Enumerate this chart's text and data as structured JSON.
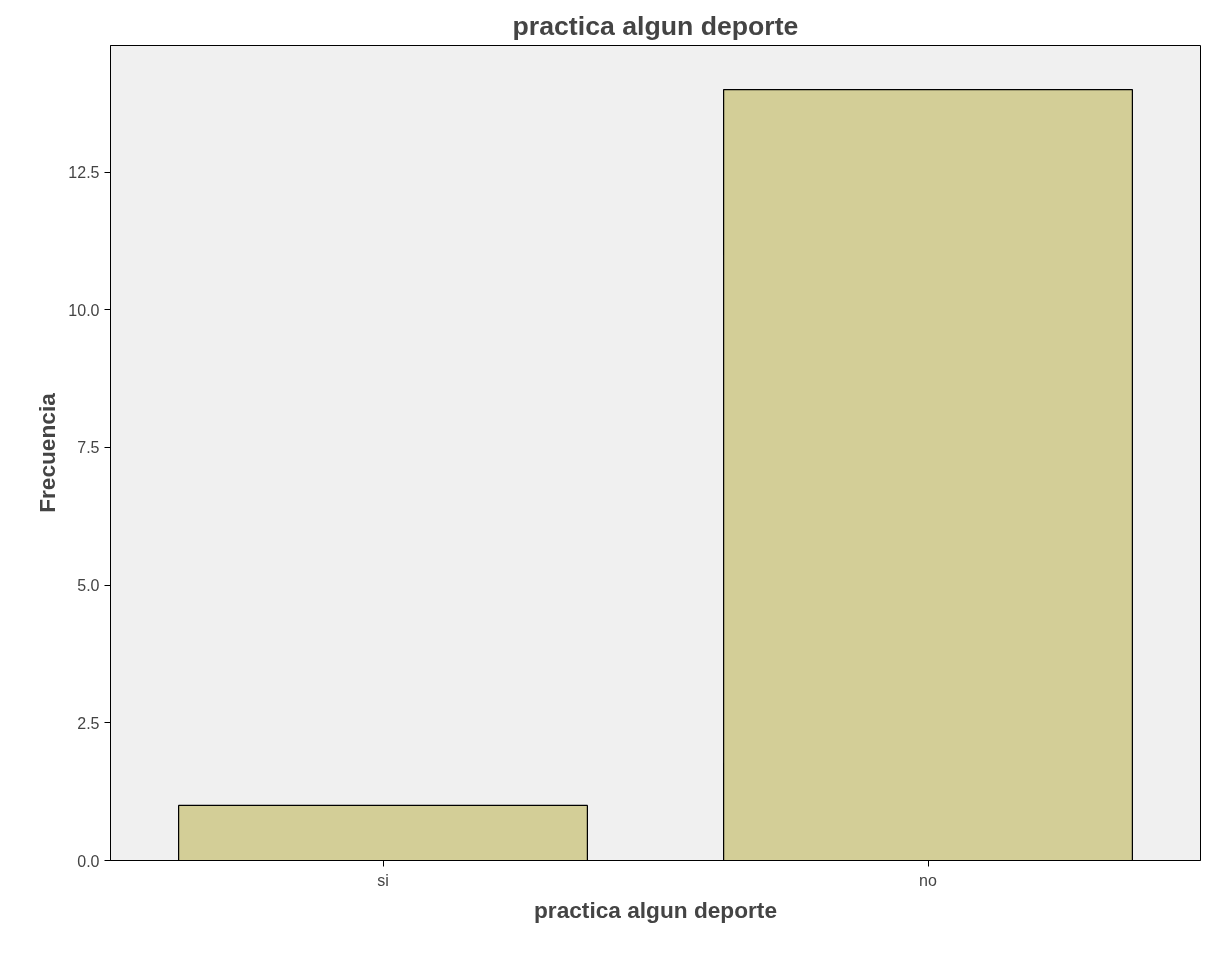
{
  "chart_data": {
    "type": "bar",
    "title": "practica algun deporte",
    "xlabel": "practica algun deporte",
    "ylabel": "Frecuencia",
    "categories": [
      "si",
      "no"
    ],
    "values": [
      1,
      14
    ],
    "color": "#d3ce97",
    "ylim": [
      0,
      14.8
    ],
    "yticks": [
      {
        "value": 0,
        "label": "0.0"
      },
      2.5,
      {
        "value": 5,
        "label": "5.0"
      },
      7.5,
      {
        "value": 10,
        "label": "10.0"
      },
      12.5
    ],
    "grid": false
  }
}
